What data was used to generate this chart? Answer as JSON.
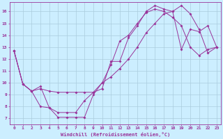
{
  "xlabel": "Windchill (Refroidissement éolien,°C)",
  "background_color": "#cceeff",
  "grid_color": "#aaccdd",
  "line_color": "#993399",
  "xlim": [
    -0.5,
    23.5
  ],
  "ylim": [
    6.5,
    16.8
  ],
  "xticks": [
    0,
    1,
    2,
    3,
    4,
    5,
    6,
    7,
    8,
    9,
    10,
    11,
    12,
    13,
    14,
    15,
    16,
    17,
    18,
    19,
    20,
    21,
    22,
    23
  ],
  "yticks": [
    7,
    8,
    9,
    10,
    11,
    12,
    13,
    14,
    15,
    16
  ],
  "series1_x": [
    0,
    1,
    2,
    3,
    4,
    5,
    6,
    7,
    8,
    9,
    10,
    11,
    12,
    13,
    14,
    15,
    16,
    17,
    18,
    19,
    20,
    21,
    22,
    23
  ],
  "series1_y": [
    12.7,
    9.9,
    9.3,
    9.7,
    7.9,
    7.1,
    7.1,
    7.1,
    7.1,
    9.0,
    10.0,
    11.5,
    13.5,
    14.0,
    15.0,
    15.9,
    16.2,
    16.0,
    15.5,
    14.8,
    13.0,
    12.3,
    12.8,
    13.0
  ],
  "series2_x": [
    0,
    1,
    2,
    3,
    4,
    5,
    6,
    7,
    8,
    9,
    10,
    11,
    12,
    13,
    14,
    15,
    16,
    17,
    18,
    19,
    20,
    21,
    22,
    23
  ],
  "series2_y": [
    12.7,
    9.9,
    9.3,
    8.0,
    7.9,
    7.5,
    7.5,
    7.5,
    8.5,
    9.2,
    9.5,
    11.8,
    11.8,
    13.8,
    14.8,
    16.0,
    16.5,
    16.2,
    16.0,
    12.8,
    14.5,
    14.3,
    14.8,
    13.0
  ],
  "series3_x": [
    0,
    1,
    2,
    3,
    4,
    5,
    6,
    7,
    8,
    9,
    10,
    11,
    12,
    13,
    14,
    15,
    16,
    17,
    18,
    19,
    20,
    21,
    22,
    23
  ],
  "series3_y": [
    12.7,
    9.9,
    9.3,
    9.5,
    9.3,
    9.2,
    9.2,
    9.2,
    9.2,
    9.2,
    10.0,
    10.5,
    11.2,
    12.0,
    13.0,
    14.2,
    15.0,
    15.8,
    16.0,
    16.5,
    15.8,
    14.5,
    12.5,
    13.0
  ]
}
